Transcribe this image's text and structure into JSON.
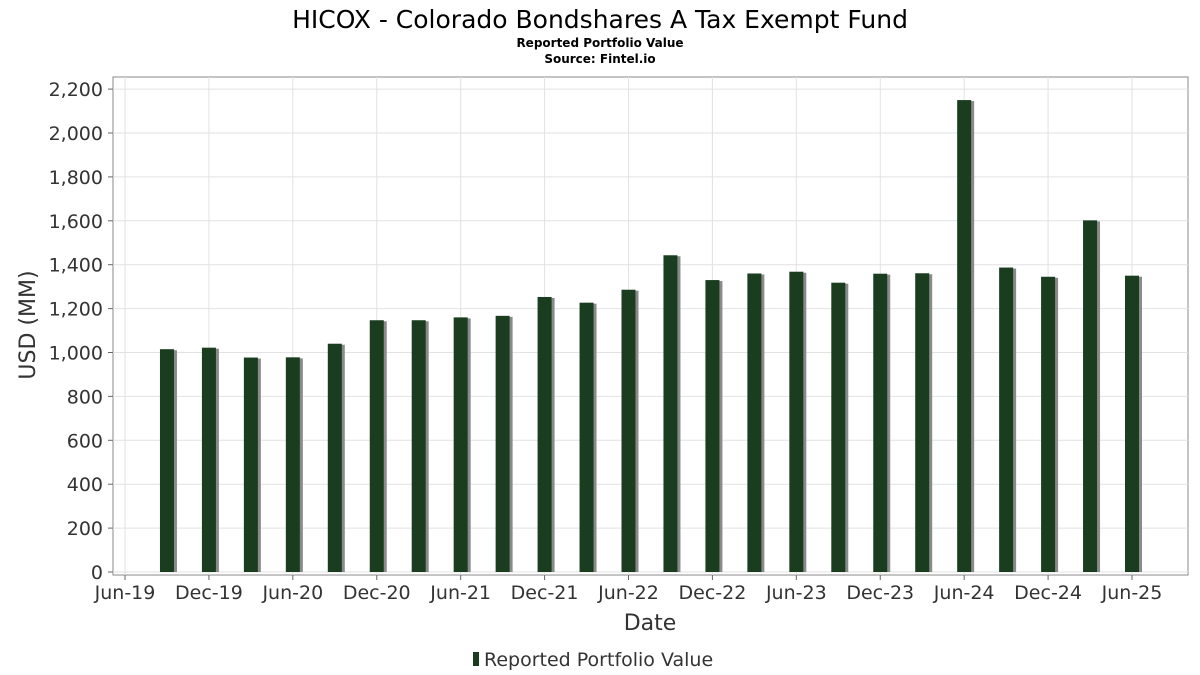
{
  "chart_data": {
    "type": "bar",
    "title": "HICOX - Colorado Bondshares A Tax Exempt Fund",
    "subtitle": "Reported Portfolio Value",
    "source": "Source: Fintel.io",
    "xlabel": "Date",
    "ylabel": "USD (MM)",
    "ylim": [
      0,
      2250
    ],
    "y_ticks": [
      0,
      200,
      400,
      600,
      800,
      1000,
      1200,
      1400,
      1600,
      1800,
      2000,
      2200
    ],
    "y_tick_labels": [
      "0",
      "200",
      "400",
      "600",
      "800",
      "1,000",
      "1,200",
      "1,400",
      "1,600",
      "1,800",
      "2,000",
      "2,200"
    ],
    "x_tick_labels": [
      "Jun-19",
      "Dec-19",
      "Jun-20",
      "Dec-20",
      "Jun-21",
      "Dec-21",
      "Jun-22",
      "Dec-22",
      "Jun-23",
      "Dec-23",
      "Jun-24",
      "Dec-24",
      "Jun-25"
    ],
    "categories": [
      "2019-09",
      "2019-12",
      "2020-03",
      "2020-06",
      "2020-09",
      "2020-12",
      "2021-03",
      "2021-06",
      "2021-09",
      "2021-12",
      "2022-03",
      "2022-06",
      "2022-09",
      "2022-12",
      "2023-03",
      "2023-06",
      "2023-09",
      "2023-12",
      "2024-03",
      "2024-06",
      "2024-09",
      "2024-12",
      "2025-03",
      "2025-06"
    ],
    "series": [
      {
        "name": "Reported Portfolio Value",
        "color": "#1a3d20",
        "values": [
          1015,
          1022,
          977,
          978,
          1040,
          1147,
          1147,
          1160,
          1167,
          1253,
          1227,
          1286,
          1443,
          1330,
          1360,
          1368,
          1318,
          1359,
          1361,
          2150,
          1387,
          1345,
          1602,
          1350
        ]
      }
    ],
    "grid": true,
    "legend_position": "bottom-center"
  }
}
